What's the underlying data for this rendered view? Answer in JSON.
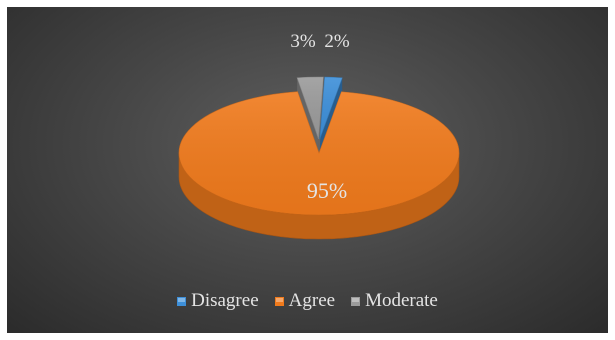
{
  "chart_data": {
    "type": "pie",
    "title": "",
    "categories": [
      "Disagree",
      "Agree",
      "Moderate"
    ],
    "values": [
      2,
      95,
      3
    ],
    "data_labels": [
      "2%",
      "95%",
      "3%"
    ],
    "colors": [
      "#3d8fd9",
      "#f07a1c",
      "#9b9b9b"
    ],
    "legend_position": "bottom",
    "three_d": true
  }
}
